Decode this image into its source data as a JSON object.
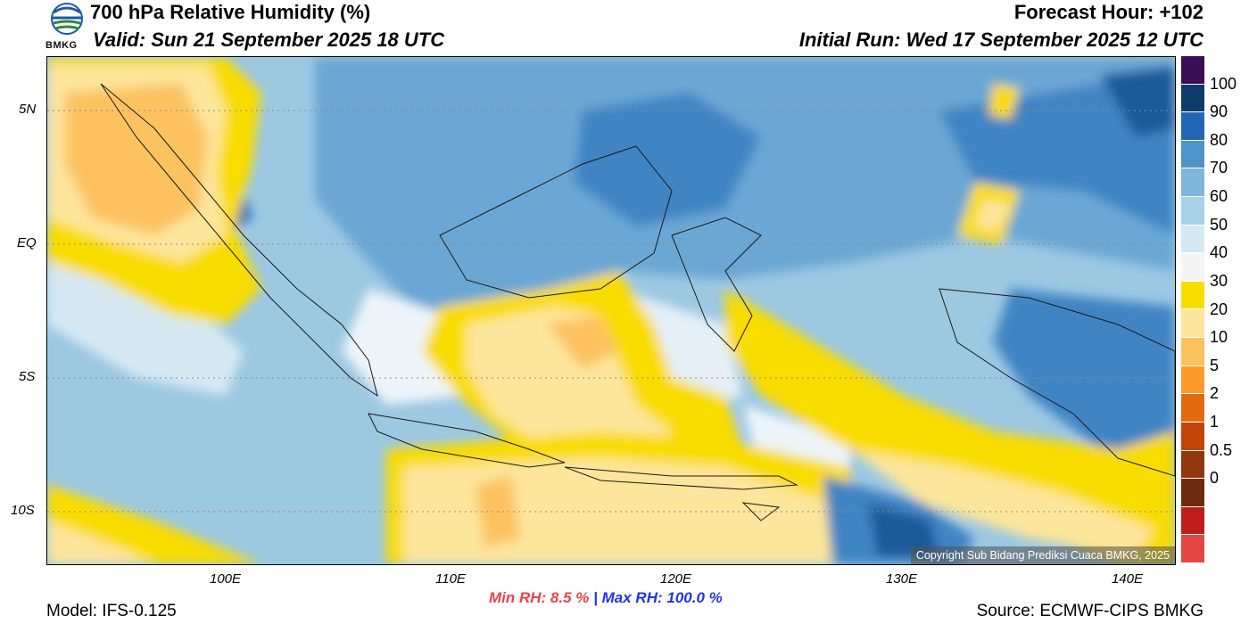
{
  "header": {
    "title": "700 hPa Relative Humidity (%)",
    "valid": "Valid: Sun 21 September 2025 18 UTC",
    "forecast_hour": "Forecast Hour: +102",
    "initial_run": "Initial Run: Wed 17 September 2025 12 UTC",
    "logo_text": "BMKG"
  },
  "map": {
    "copyright": "Copyright Sub Bidang Prediksi Cuaca BMKG, 2025",
    "lat_labels": [
      "5N",
      "EQ",
      "5S",
      "10S"
    ],
    "lon_labels": [
      "100E",
      "110E",
      "120E",
      "130E",
      "140E"
    ]
  },
  "colorbar": {
    "labels": [
      "100",
      "90",
      "80",
      "70",
      "60",
      "50",
      "40",
      "30",
      "20",
      "10",
      "5",
      "2",
      "1",
      "0.5",
      "0"
    ],
    "colors": [
      "#3a0f55",
      "#0e3a6c",
      "#2167b4",
      "#4f93cb",
      "#7fb6db",
      "#a8d0e8",
      "#d6e9f3",
      "#f5f5f5",
      "#f9dc00",
      "#fde59b",
      "#fcc25e",
      "#fb9c2d",
      "#e46a11",
      "#c14409",
      "#92360d",
      "#6e2a10",
      "#bf1c1c",
      "#e44545"
    ]
  },
  "footer": {
    "min_rh": "Min RH:   8.5 %",
    "separator": "|",
    "max_rh": "Max RH: 100.0 %",
    "model": "Model: IFS-0.125",
    "source": "Source: ECMWF-CIPS BMKG"
  }
}
